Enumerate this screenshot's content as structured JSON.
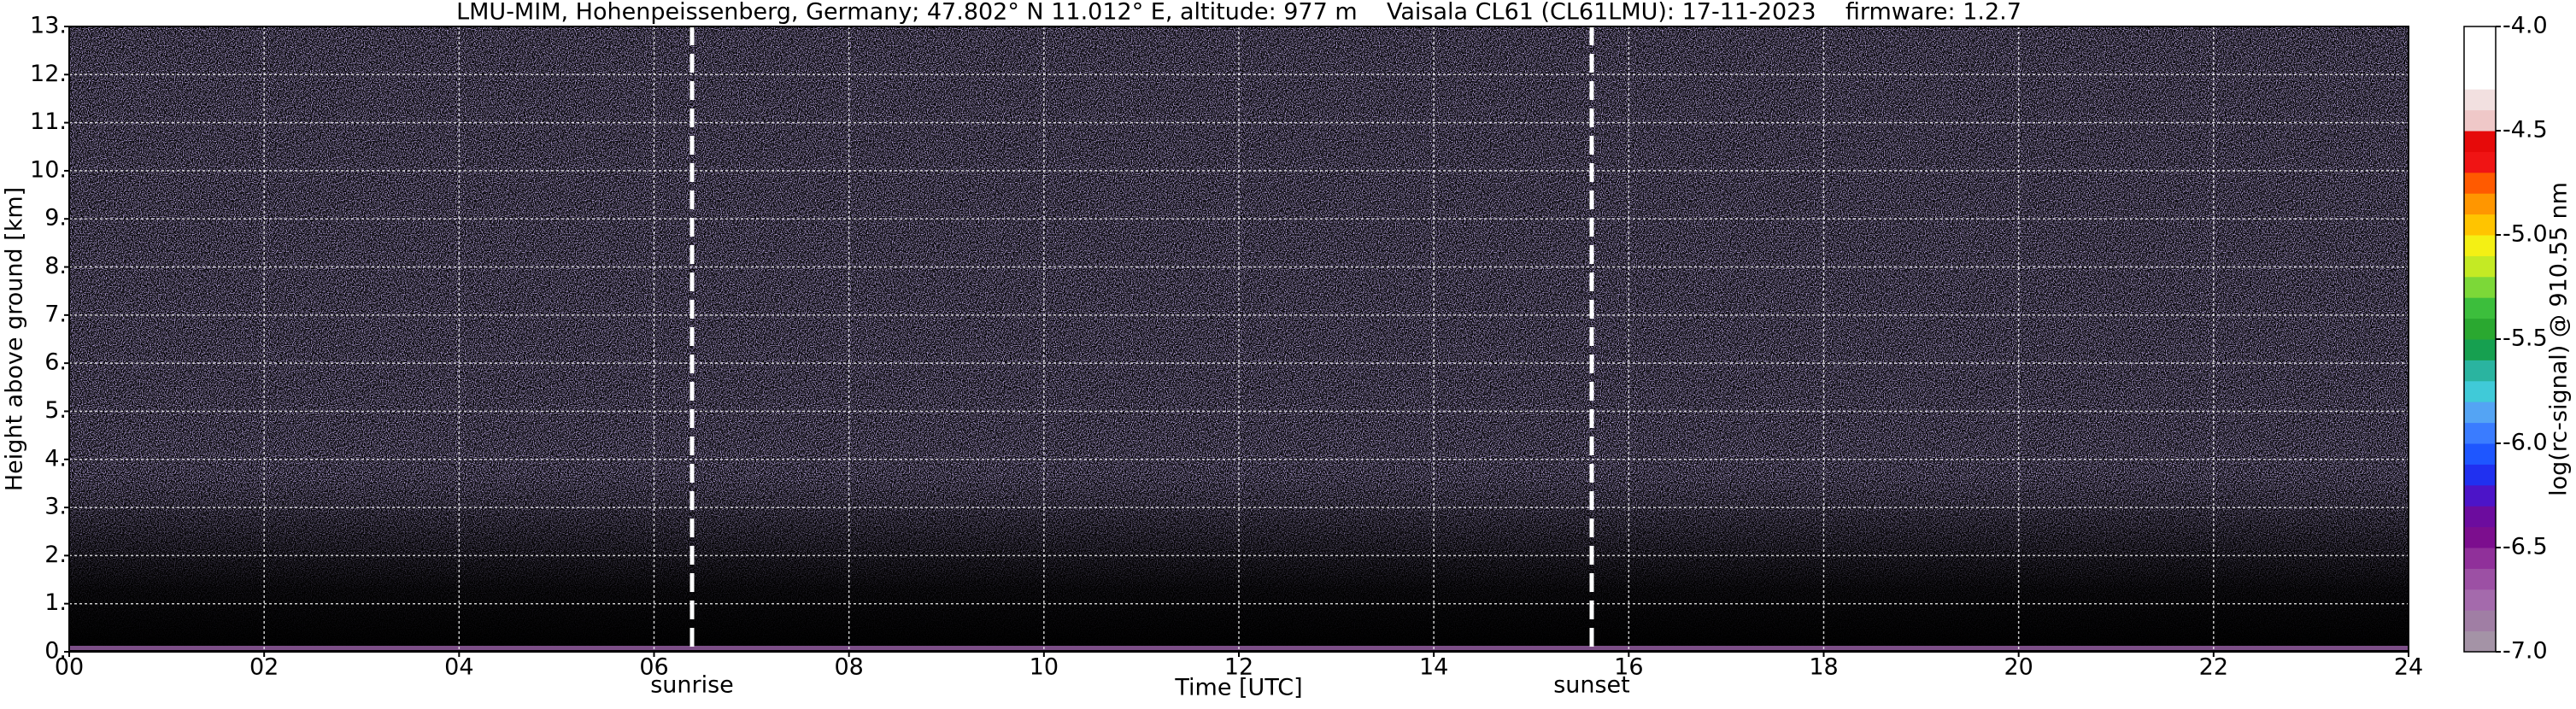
{
  "chart_data": {
    "type": "heatmap",
    "title": "LMU-MIM, Hohenpeissenberg, Germany; 47.802° N 11.012° E, altitude: 977 m    Vaisala CL61 (CL61LMU): 17-11-2023    firmware: 1.2.7",
    "x_label": "Time [UTC]",
    "y_label": "Height above ground [km]",
    "xlim": [
      0,
      24
    ],
    "xticks": [
      {
        "value": 0,
        "label": "00"
      },
      {
        "value": 2,
        "label": "02"
      },
      {
        "value": 4,
        "label": "04"
      },
      {
        "value": 6,
        "label": "06"
      },
      {
        "value": 8,
        "label": "08"
      },
      {
        "value": 10,
        "label": "10"
      },
      {
        "value": 12,
        "label": "12"
      },
      {
        "value": 14,
        "label": "14"
      },
      {
        "value": 16,
        "label": "16"
      },
      {
        "value": 18,
        "label": "18"
      },
      {
        "value": 20,
        "label": "20"
      },
      {
        "value": 22,
        "label": "22"
      },
      {
        "value": 24,
        "label": "24"
      }
    ],
    "ylim": [
      0,
      13
    ],
    "yticks": [
      {
        "value": 0,
        "label": "0."
      },
      {
        "value": 1,
        "label": "1."
      },
      {
        "value": 2,
        "label": "2."
      },
      {
        "value": 3,
        "label": "3."
      },
      {
        "value": 4,
        "label": "4."
      },
      {
        "value": 5,
        "label": "5."
      },
      {
        "value": 6,
        "label": "6."
      },
      {
        "value": 7,
        "label": "7."
      },
      {
        "value": 8,
        "label": "8."
      },
      {
        "value": 9,
        "label": "9."
      },
      {
        "value": 10,
        "label": "10."
      },
      {
        "value": 11,
        "label": "11."
      },
      {
        "value": 12,
        "label": "12."
      },
      {
        "value": 13,
        "label": "13."
      }
    ],
    "grid": true,
    "annotations": [
      {
        "x": 6.39,
        "label": "sunrise"
      },
      {
        "x": 15.62,
        "label": "sunset"
      }
    ],
    "colorbar": {
      "label": "log(rc-signal) @ 910.55 nm",
      "clim": [
        -7.0,
        -4.0
      ],
      "ticks": [
        {
          "value": -7.0,
          "label": "-7.0"
        },
        {
          "value": -6.5,
          "label": "-6.5"
        },
        {
          "value": -6.0,
          "label": "-6.0"
        },
        {
          "value": -5.5,
          "label": "-5.5"
        },
        {
          "value": -5.0,
          "label": "-5.0"
        },
        {
          "value": -4.5,
          "label": "-4.5"
        },
        {
          "value": -4.0,
          "label": "-4.0"
        }
      ],
      "colors": [
        "#a493a6",
        "#a07ea4",
        "#a46aac",
        "#9c50a4",
        "#90309a",
        "#7c0e8e",
        "#6c0c9e",
        "#4c14c8",
        "#2030f0",
        "#1e56ff",
        "#3a7cff",
        "#54a4f4",
        "#40cad8",
        "#2ab4a0",
        "#16a050",
        "#2aa830",
        "#3cbe3c",
        "#7cd838",
        "#c4ea24",
        "#f4f014",
        "#ffc400",
        "#ff9600",
        "#ff5a00",
        "#f01414",
        "#e60a0a",
        "#efc8c8",
        "#f2e0e0",
        "#ffffff",
        "#ffffff",
        "#ffffff"
      ]
    }
  }
}
